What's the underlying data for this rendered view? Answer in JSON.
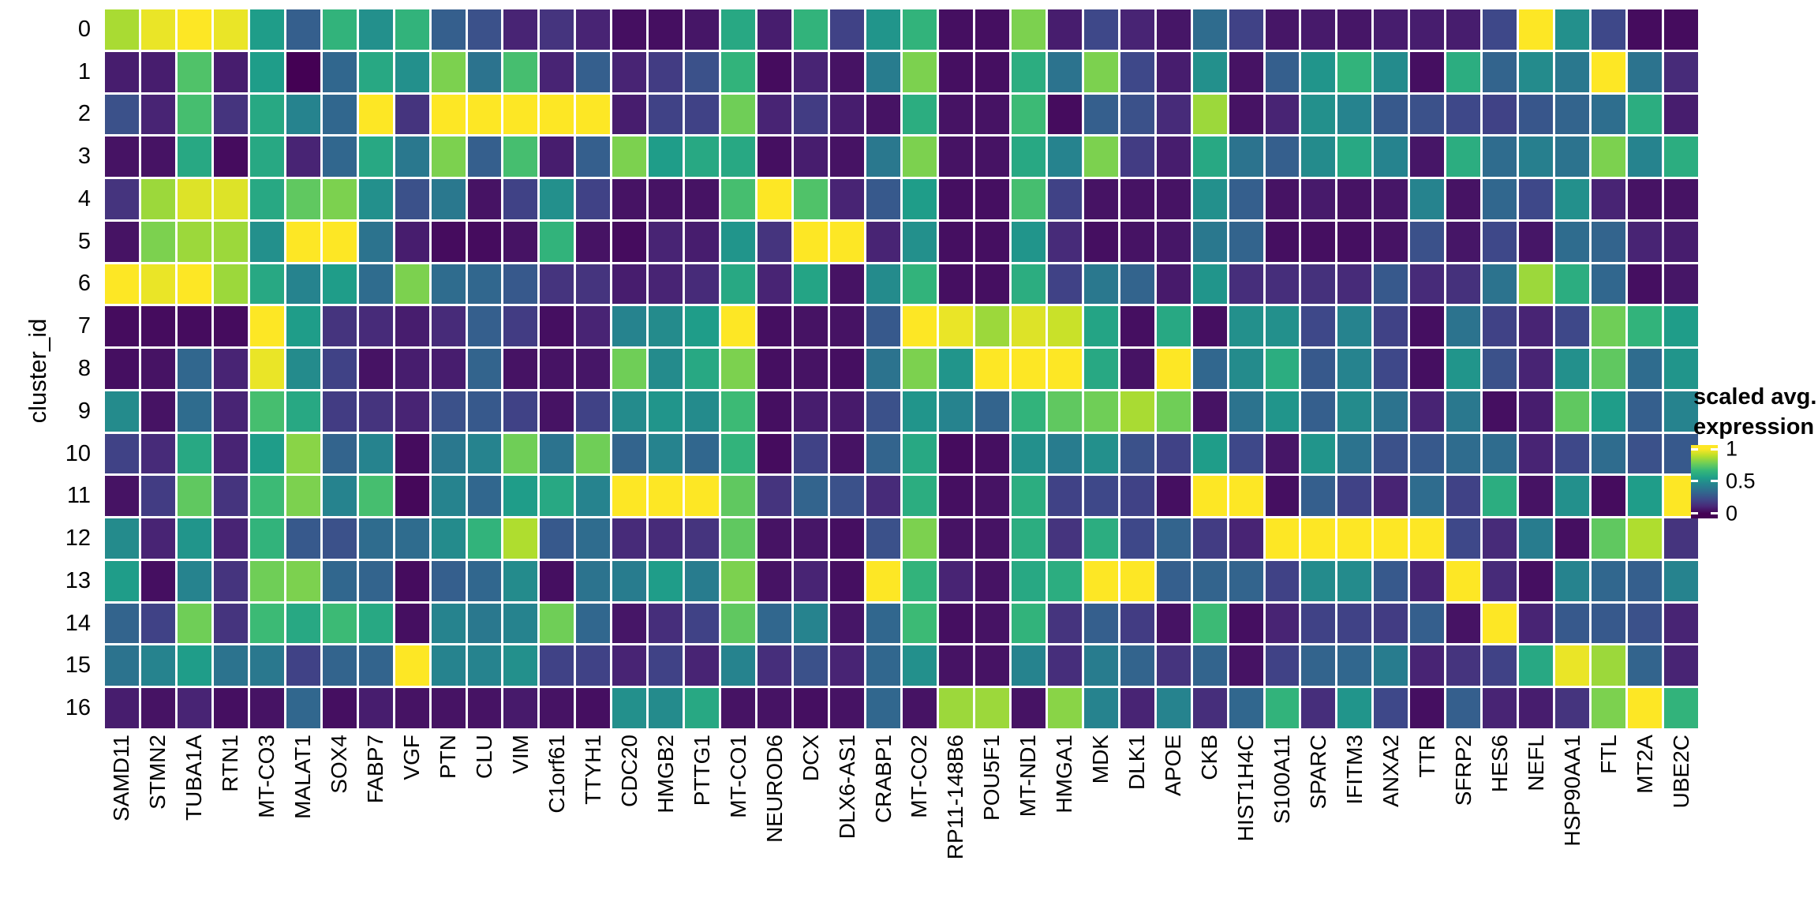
{
  "chart_data": {
    "type": "heatmap",
    "title": "",
    "xlabel": "",
    "ylabel": "cluster_id",
    "x_categories": [
      "SAMD11",
      "STMN2",
      "TUBA1A",
      "RTN1",
      "MT-CO3",
      "MALAT1",
      "SOX4",
      "FABP7",
      "VGF",
      "PTN",
      "CLU",
      "VIM",
      "C1orf61",
      "TTYH1",
      "CDC20",
      "HMGB2",
      "PTTG1",
      "MT-CO1",
      "NEUROD6",
      "DCX",
      "DLX6-AS1",
      "CRABP1",
      "MT-CO2",
      "RP11-148B6",
      "POU5F1",
      "MT-ND1",
      "HMGA1",
      "MDK",
      "DLK1",
      "APOE",
      "CKB",
      "HIST1H4C",
      "S100A11",
      "SPARC",
      "IFITM3",
      "ANXA2",
      "TTR",
      "SFRP2",
      "HES6",
      "NEFL",
      "HSP90AA1",
      "FTL",
      "MT2A",
      "UBE2C"
    ],
    "y_categories": [
      "0",
      "1",
      "2",
      "3",
      "4",
      "5",
      "6",
      "7",
      "8",
      "9",
      "10",
      "11",
      "12",
      "13",
      "14",
      "15",
      "16"
    ],
    "value_range": [
      0,
      1
    ],
    "values": [
      [
        0.87,
        0.97,
        1,
        0.97,
        0.55,
        0.3,
        0.65,
        0.5,
        0.65,
        0.3,
        0.25,
        0.1,
        0.15,
        0.1,
        0.04,
        0.04,
        0.06,
        0.6,
        0.08,
        0.65,
        0.2,
        0.52,
        0.65,
        0.04,
        0.04,
        0.8,
        0.08,
        0.22,
        0.1,
        0.06,
        0.35,
        0.2,
        0.06,
        0.07,
        0.06,
        0.08,
        0.08,
        0.08,
        0.22,
        1,
        0.5,
        0.22,
        0.03,
        0.03
      ],
      [
        0.08,
        0.08,
        0.72,
        0.08,
        0.55,
        0,
        0.33,
        0.6,
        0.5,
        0.8,
        0.38,
        0.7,
        0.1,
        0.3,
        0.1,
        0.18,
        0.25,
        0.65,
        0.03,
        0.1,
        0.05,
        0.42,
        0.8,
        0.04,
        0.04,
        0.62,
        0.38,
        0.8,
        0.22,
        0.08,
        0.5,
        0.05,
        0.3,
        0.52,
        0.65,
        0.48,
        0.04,
        0.62,
        0.32,
        0.48,
        0.4,
        1,
        0.38,
        0.12
      ],
      [
        0.25,
        0.1,
        0.7,
        0.15,
        0.6,
        0.45,
        0.33,
        1,
        0.15,
        1,
        1,
        1,
        1,
        1,
        0.08,
        0.2,
        0.2,
        0.78,
        0.1,
        0.18,
        0.08,
        0.05,
        0.62,
        0.05,
        0.05,
        0.68,
        0.03,
        0.3,
        0.25,
        0.12,
        0.85,
        0.05,
        0.1,
        0.5,
        0.45,
        0.28,
        0.25,
        0.22,
        0.2,
        0.27,
        0.32,
        0.36,
        0.62,
        0.08
      ],
      [
        0.05,
        0.05,
        0.6,
        0.03,
        0.6,
        0.1,
        0.33,
        0.6,
        0.4,
        0.8,
        0.3,
        0.7,
        0.08,
        0.3,
        0.8,
        0.55,
        0.6,
        0.6,
        0.04,
        0.08,
        0.05,
        0.4,
        0.8,
        0.05,
        0.05,
        0.6,
        0.45,
        0.8,
        0.18,
        0.08,
        0.6,
        0.38,
        0.3,
        0.48,
        0.6,
        0.45,
        0.06,
        0.62,
        0.35,
        0.43,
        0.38,
        0.8,
        0.45,
        0.62
      ],
      [
        0.15,
        0.85,
        0.95,
        0.95,
        0.6,
        0.75,
        0.8,
        0.5,
        0.25,
        0.4,
        0.05,
        0.2,
        0.5,
        0.2,
        0.05,
        0.05,
        0.05,
        0.7,
        1,
        0.72,
        0.1,
        0.28,
        0.55,
        0.04,
        0.04,
        0.7,
        0.2,
        0.05,
        0.05,
        0.05,
        0.5,
        0.3,
        0.05,
        0.07,
        0.05,
        0.06,
        0.45,
        0.05,
        0.33,
        0.22,
        0.5,
        0.1,
        0.05,
        0.05
      ],
      [
        0.05,
        0.8,
        0.85,
        0.85,
        0.5,
        1,
        1,
        0.38,
        0.08,
        0.03,
        0.03,
        0.05,
        0.65,
        0.05,
        0.03,
        0.1,
        0.08,
        0.52,
        0.15,
        1,
        1,
        0.1,
        0.5,
        0.04,
        0.04,
        0.52,
        0.12,
        0.04,
        0.05,
        0.06,
        0.4,
        0.32,
        0.04,
        0.04,
        0.04,
        0.05,
        0.25,
        0.06,
        0.22,
        0.06,
        0.35,
        0.32,
        0.1,
        0.08
      ],
      [
        1,
        0.97,
        1,
        0.85,
        0.6,
        0.45,
        0.55,
        0.35,
        0.8,
        0.35,
        0.33,
        0.28,
        0.15,
        0.15,
        0.08,
        0.1,
        0.12,
        0.6,
        0.1,
        0.58,
        0.05,
        0.48,
        0.65,
        0.04,
        0.04,
        0.62,
        0.2,
        0.4,
        0.32,
        0.07,
        0.52,
        0.13,
        0.13,
        0.14,
        0.12,
        0.28,
        0.12,
        0.14,
        0.38,
        0.85,
        0.62,
        0.33,
        0.04,
        0.06
      ],
      [
        0.03,
        0.03,
        0.03,
        0.03,
        1,
        0.55,
        0.15,
        0.12,
        0.08,
        0.12,
        0.3,
        0.18,
        0.04,
        0.1,
        0.45,
        0.48,
        0.55,
        1,
        0.04,
        0.05,
        0.05,
        0.28,
        1,
        0.97,
        0.85,
        0.95,
        0.92,
        0.58,
        0.04,
        0.6,
        0.04,
        0.5,
        0.5,
        0.22,
        0.45,
        0.2,
        0.04,
        0.38,
        0.2,
        0.1,
        0.22,
        0.78,
        0.65,
        0.55
      ],
      [
        0.04,
        0.05,
        0.33,
        0.1,
        0.97,
        0.48,
        0.2,
        0.05,
        0.08,
        0.08,
        0.32,
        0.05,
        0.05,
        0.06,
        0.78,
        0.48,
        0.6,
        0.8,
        0.04,
        0.05,
        0.04,
        0.38,
        0.8,
        0.52,
        1,
        1,
        1,
        0.6,
        0.05,
        1,
        0.33,
        0.48,
        0.62,
        0.28,
        0.45,
        0.22,
        0.04,
        0.52,
        0.25,
        0.1,
        0.5,
        0.75,
        0.35,
        0.52
      ],
      [
        0.48,
        0.05,
        0.35,
        0.1,
        0.7,
        0.6,
        0.18,
        0.15,
        0.1,
        0.25,
        0.28,
        0.2,
        0.05,
        0.2,
        0.48,
        0.52,
        0.48,
        0.68,
        0.04,
        0.08,
        0.07,
        0.25,
        0.52,
        0.45,
        0.32,
        0.65,
        0.75,
        0.78,
        0.87,
        0.78,
        0.05,
        0.38,
        0.52,
        0.3,
        0.48,
        0.38,
        0.1,
        0.4,
        0.04,
        0.08,
        0.75,
        0.55,
        0.3,
        0.45
      ],
      [
        0.2,
        0.12,
        0.6,
        0.1,
        0.55,
        0.82,
        0.32,
        0.45,
        0.03,
        0.4,
        0.45,
        0.78,
        0.38,
        0.78,
        0.32,
        0.45,
        0.33,
        0.65,
        0.03,
        0.2,
        0.05,
        0.32,
        0.6,
        0.03,
        0.04,
        0.5,
        0.42,
        0.5,
        0.25,
        0.2,
        0.55,
        0.22,
        0.06,
        0.52,
        0.38,
        0.25,
        0.28,
        0.35,
        0.35,
        0.1,
        0.22,
        0.35,
        0.25,
        0.28
      ],
      [
        0.05,
        0.18,
        0.75,
        0.15,
        0.68,
        0.8,
        0.45,
        0.7,
        0.02,
        0.45,
        0.33,
        0.55,
        0.6,
        0.45,
        1,
        1,
        1,
        0.75,
        0.15,
        0.32,
        0.25,
        0.12,
        0.62,
        0.04,
        0.05,
        0.62,
        0.2,
        0.22,
        0.2,
        0.04,
        1,
        1,
        0.04,
        0.3,
        0.2,
        0.1,
        0.35,
        0.2,
        0.62,
        0.05,
        0.5,
        0.03,
        0.55,
        1
      ],
      [
        0.48,
        0.1,
        0.52,
        0.1,
        0.65,
        0.28,
        0.25,
        0.35,
        0.35,
        0.48,
        0.65,
        0.88,
        0.28,
        0.35,
        0.12,
        0.12,
        0.15,
        0.75,
        0.05,
        0.06,
        0.04,
        0.25,
        0.8,
        0.05,
        0.05,
        0.62,
        0.15,
        0.62,
        0.22,
        0.32,
        0.18,
        0.1,
        1,
        1,
        1,
        1,
        1,
        0.22,
        0.12,
        0.42,
        0.04,
        0.75,
        0.88,
        0.15
      ],
      [
        0.55,
        0.04,
        0.45,
        0.15,
        0.78,
        0.8,
        0.33,
        0.32,
        0.03,
        0.3,
        0.33,
        0.48,
        0.04,
        0.38,
        0.42,
        0.55,
        0.42,
        0.8,
        0.05,
        0.1,
        0.04,
        1,
        0.65,
        0.1,
        0.05,
        0.6,
        0.62,
        1,
        1,
        0.3,
        0.32,
        0.32,
        0.2,
        0.48,
        0.48,
        0.28,
        0.1,
        1,
        0.12,
        0.04,
        0.45,
        0.33,
        0.3,
        0.45
      ],
      [
        0.32,
        0.2,
        0.78,
        0.15,
        0.68,
        0.6,
        0.68,
        0.6,
        0.04,
        0.45,
        0.4,
        0.45,
        0.78,
        0.33,
        0.06,
        0.13,
        0.2,
        0.75,
        0.33,
        0.45,
        0.06,
        0.33,
        0.68,
        0.04,
        0.05,
        0.65,
        0.15,
        0.3,
        0.18,
        0.05,
        0.68,
        0.04,
        0.1,
        0.2,
        0.2,
        0.18,
        0.3,
        0.05,
        1,
        0.1,
        0.28,
        0.28,
        0.25,
        0.1
      ],
      [
        0.38,
        0.45,
        0.55,
        0.38,
        0.4,
        0.2,
        0.32,
        0.32,
        1,
        0.45,
        0.45,
        0.5,
        0.2,
        0.2,
        0.1,
        0.2,
        0.1,
        0.45,
        0.13,
        0.25,
        0.1,
        0.33,
        0.5,
        0.05,
        0.05,
        0.45,
        0.13,
        0.42,
        0.32,
        0.15,
        0.32,
        0.05,
        0.2,
        0.32,
        0.33,
        0.42,
        0.1,
        0.15,
        0.2,
        0.6,
        0.97,
        0.85,
        0.32,
        0.1
      ],
      [
        0.08,
        0.05,
        0.1,
        0.04,
        0.05,
        0.33,
        0.04,
        0.08,
        0.05,
        0.05,
        0.05,
        0.07,
        0.05,
        0.04,
        0.5,
        0.48,
        0.6,
        0.05,
        0.05,
        0.04,
        0.05,
        0.33,
        0.05,
        0.85,
        0.85,
        0.05,
        0.82,
        0.45,
        0.1,
        0.45,
        0.13,
        0.33,
        0.65,
        0.13,
        0.52,
        0.22,
        0.04,
        0.3,
        0.1,
        0.08,
        0.15,
        0.8,
        1,
        0.65
      ]
    ],
    "colormap": {
      "name": "viridis",
      "stops": [
        "#440154",
        "#482878",
        "#3e4989",
        "#31688e",
        "#26828e",
        "#1f9e89",
        "#35b779",
        "#6ece58",
        "#b5de2b",
        "#fde725"
      ]
    },
    "legend": {
      "title_line1": "scaled avg.",
      "title_line2": "expression",
      "ticks": [
        {
          "label": "1",
          "value": 1
        },
        {
          "label": "0.5",
          "value": 0.5
        },
        {
          "label": "0",
          "value": 0
        }
      ]
    },
    "layout": {
      "grid": "off",
      "legend_position": "right",
      "background": "#ffffff",
      "text_color": "#000000",
      "cell_gap_color": "#ffffff"
    }
  }
}
